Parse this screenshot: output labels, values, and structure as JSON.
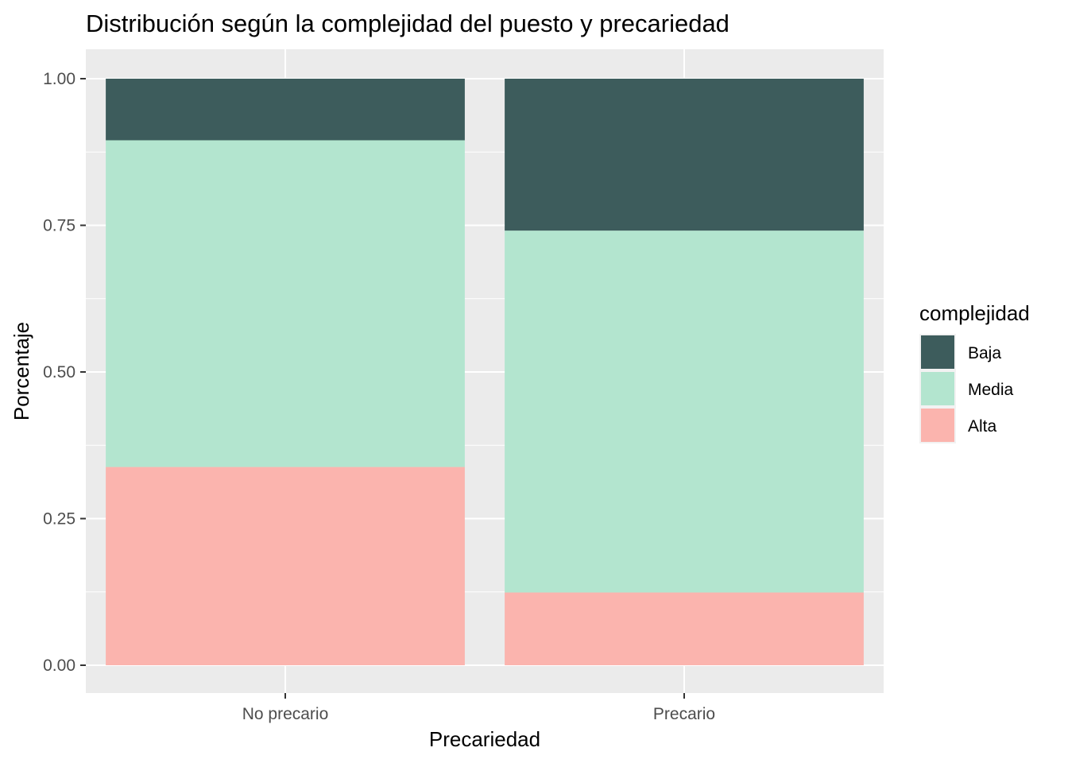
{
  "chart_data": {
    "type": "bar",
    "stacked": true,
    "title": "Distribución según la complejidad del puesto y precariedad",
    "xlabel": "Precariedad",
    "ylabel": "Porcentaje",
    "categories": [
      "No precario",
      "Precario"
    ],
    "ylim": [
      0,
      1
    ],
    "yticks": [
      "0.00",
      "0.25",
      "0.50",
      "0.75",
      "1.00"
    ],
    "ytick_values": [
      0,
      0.25,
      0.5,
      0.75,
      1.0
    ],
    "series": [
      {
        "name": "Alta",
        "color": "#FBB4AE",
        "values": [
          0.338,
          0.124
        ]
      },
      {
        "name": "Media",
        "color": "#B3E5CF",
        "values": [
          0.557,
          0.617
        ]
      },
      {
        "name": "Baja",
        "color": "#3D5C5C",
        "values": [
          0.105,
          0.259
        ]
      }
    ],
    "legend": {
      "title": "complejidad",
      "position": "right",
      "order": [
        "Baja",
        "Media",
        "Alta"
      ]
    },
    "grid": true,
    "panel_background": "#EBEBEB",
    "grid_color": "#FFFFFF"
  }
}
